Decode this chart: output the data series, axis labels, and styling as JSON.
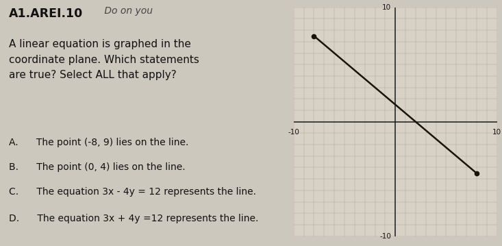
{
  "background_color": "#cdc8be",
  "left_panel": {
    "title_bold": "A1.AREI.10",
    "title_handwritten": " Do on you",
    "body_text": "A linear equation is graphed in the\ncoordinate plane. Which statements\nare true? Select ALL that apply?",
    "options": [
      "A.      The point (-8, 9) lies on the line.",
      "B.      The point (0, 4) lies on the line.",
      "C.      The equation 3x - 4y = 12 represents the line.",
      "D.      The equation 3x + 4y =12 represents the line."
    ]
  },
  "graph": {
    "xlim": [
      -10,
      10
    ],
    "ylim": [
      -10,
      10
    ],
    "grid_color": "#b0a898",
    "axis_color": "#1a1a1a",
    "line_x": [
      -8,
      8
    ],
    "line_y": [
      7.5,
      -4.5
    ],
    "line_color": "#1a1208",
    "line_width": 1.8,
    "dot_points": [
      [
        -8,
        7.5
      ],
      [
        8,
        -4.5
      ]
    ],
    "dot_color": "#1a1208",
    "background_color": "#d8d2c6",
    "tick_label_color": "#111111",
    "tick_label_size": 7.5,
    "axis_linewidth": 1.1
  }
}
